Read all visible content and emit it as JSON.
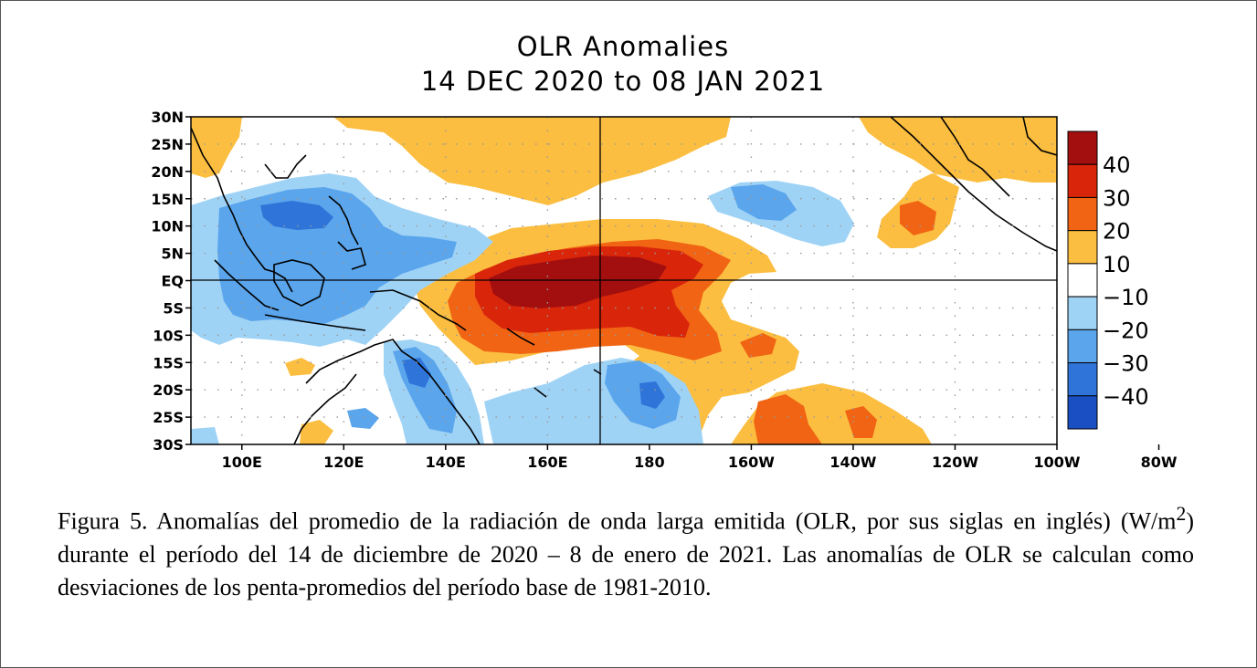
{
  "map": {
    "title_line1": "OLR Anomalies",
    "title_line2": "14 DEC 2020 to 08 JAN 2021",
    "lat_labels": [
      "30N",
      "25N",
      "20N",
      "15N",
      "10N",
      "5N",
      "EQ",
      "5S",
      "10S",
      "15S",
      "20S",
      "25S",
      "30S"
    ],
    "lon_labels": [
      "100E",
      "120E",
      "140E",
      "160E",
      "180",
      "160W",
      "140W",
      "120W",
      "100W",
      "80W"
    ],
    "colorbar": {
      "labels": [
        "40",
        "30",
        "20",
        "10",
        "−10",
        "−20",
        "−30",
        "−40"
      ],
      "colors": [
        "#a30f0f",
        "#d9260b",
        "#f06414",
        "#fbbe40",
        "#ffffff",
        "#9fd3f6",
        "#5aa5ec",
        "#2f74d8",
        "#1a4fc4"
      ]
    }
  },
  "caption": {
    "part1": "Figura 5. Anomalías del promedio de la radiación de onda larga emitida (OLR, por sus siglas en inglés) (W/m",
    "superscript": "2",
    "part2": ") durante el período del 14 de diciembre de 2020 – 8 de enero de 2021.  Las anomalías de OLR se calculan como desviaciones de los penta-promedios del período base de 1981-2010."
  }
}
